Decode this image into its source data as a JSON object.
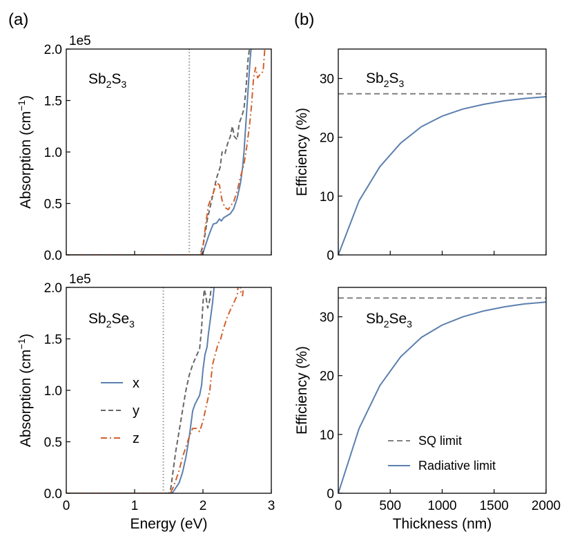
{
  "panel_labels": {
    "a": "(a)",
    "b": "(b)"
  },
  "chart_data": [
    {
      "id": "sb2s3_absorption",
      "type": "line",
      "panel": "(a)",
      "annotation": {
        "base1": "Sb",
        "sub1": "2",
        "base2": "S",
        "sub2": "3"
      },
      "xlabel": "",
      "ylabel": {
        "main": "Absorption (cm",
        "sup": "−1",
        "close": ")"
      },
      "xlim": [
        0,
        3
      ],
      "ylim": [
        0,
        2.0
      ],
      "xticks": [
        0,
        1,
        2,
        3
      ],
      "xticklabels": [],
      "yticks": [
        0,
        0.5,
        1.0,
        1.5,
        2.0
      ],
      "yticklabels": [
        "0.0",
        "0.5",
        "1.0",
        "1.5",
        "2.0"
      ],
      "offset_text": "1e5",
      "vline": 1.8,
      "series": [
        {
          "name": "x",
          "color": "#5b7fae",
          "dash": "",
          "points": [
            [
              0,
              0
            ],
            [
              1.98,
              0
            ],
            [
              2.0,
              0.02
            ],
            [
              2.04,
              0.1
            ],
            [
              2.08,
              0.18
            ],
            [
              2.12,
              0.25
            ],
            [
              2.15,
              0.3
            ],
            [
              2.2,
              0.31
            ],
            [
              2.24,
              0.35
            ],
            [
              2.27,
              0.33
            ],
            [
              2.3,
              0.36
            ],
            [
              2.35,
              0.38
            ],
            [
              2.4,
              0.4
            ],
            [
              2.45,
              0.45
            ],
            [
              2.5,
              0.55
            ],
            [
              2.55,
              0.7
            ],
            [
              2.58,
              0.85
            ],
            [
              2.6,
              1.0
            ],
            [
              2.63,
              1.3
            ],
            [
              2.66,
              1.6
            ],
            [
              2.69,
              1.9
            ],
            [
              2.71,
              2.05
            ]
          ]
        },
        {
          "name": "y",
          "color": "#656565",
          "dash": "7,4",
          "points": [
            [
              0,
              0
            ],
            [
              1.96,
              0
            ],
            [
              1.98,
              0.05
            ],
            [
              2.01,
              0.12
            ],
            [
              2.04,
              0.24
            ],
            [
              2.06,
              0.33
            ],
            [
              2.1,
              0.45
            ],
            [
              2.15,
              0.6
            ],
            [
              2.2,
              0.75
            ],
            [
              2.25,
              0.85
            ],
            [
              2.28,
              1.0
            ],
            [
              2.32,
              0.98
            ],
            [
              2.36,
              1.08
            ],
            [
              2.4,
              1.15
            ],
            [
              2.43,
              1.25
            ],
            [
              2.46,
              1.15
            ],
            [
              2.5,
              1.12
            ],
            [
              2.53,
              1.28
            ],
            [
              2.57,
              1.35
            ],
            [
              2.6,
              1.42
            ],
            [
              2.63,
              1.62
            ],
            [
              2.66,
              1.9
            ],
            [
              2.69,
              2.05
            ]
          ]
        },
        {
          "name": "z",
          "color": "#d2602b",
          "dash": "9,4,2,4",
          "points": [
            [
              0,
              0
            ],
            [
              1.97,
              0
            ],
            [
              2.0,
              0.08
            ],
            [
              2.04,
              0.3
            ],
            [
              2.08,
              0.48
            ],
            [
              2.12,
              0.55
            ],
            [
              2.15,
              0.6
            ],
            [
              2.2,
              0.7
            ],
            [
              2.24,
              0.68
            ],
            [
              2.28,
              0.53
            ],
            [
              2.32,
              0.46
            ],
            [
              2.37,
              0.44
            ],
            [
              2.41,
              0.48
            ],
            [
              2.45,
              0.52
            ],
            [
              2.5,
              0.62
            ],
            [
              2.55,
              0.76
            ],
            [
              2.6,
              0.88
            ],
            [
              2.64,
              1.05
            ],
            [
              2.68,
              1.25
            ],
            [
              2.71,
              1.45
            ],
            [
              2.74,
              1.72
            ],
            [
              2.77,
              1.82
            ],
            [
              2.8,
              1.72
            ],
            [
              2.84,
              1.76
            ],
            [
              2.88,
              1.78
            ],
            [
              2.91,
              2.05
            ]
          ]
        }
      ]
    },
    {
      "id": "sb2se3_absorption",
      "type": "line",
      "panel": "",
      "annotation": {
        "base1": "Sb",
        "sub1": "2",
        "base2": "Se",
        "sub2": "3"
      },
      "xlabel": "Energy (eV)",
      "ylabel": {
        "main": "Absorption (cm",
        "sup": "−1",
        "close": ")"
      },
      "xlim": [
        0,
        3
      ],
      "ylim": [
        0,
        2.0
      ],
      "xticks": [
        0,
        1,
        2,
        3
      ],
      "xticklabels": [
        "0",
        "1",
        "2",
        "3"
      ],
      "yticks": [
        0,
        0.5,
        1.0,
        1.5,
        2.0
      ],
      "yticklabels": [
        "0.0",
        "0.5",
        "1.0",
        "1.5",
        "2.0"
      ],
      "offset_text": "1e5",
      "vline": 1.42,
      "legend": {
        "position": "center-left",
        "entries": [
          "x",
          "y",
          "z"
        ]
      },
      "series": [
        {
          "name": "x",
          "color": "#5b7fae",
          "dash": "",
          "points": [
            [
              0,
              0
            ],
            [
              1.52,
              0
            ],
            [
              1.56,
              0.01
            ],
            [
              1.6,
              0.05
            ],
            [
              1.65,
              0.1
            ],
            [
              1.7,
              0.2
            ],
            [
              1.75,
              0.35
            ],
            [
              1.8,
              0.55
            ],
            [
              1.85,
              0.8
            ],
            [
              1.88,
              0.86
            ],
            [
              1.91,
              0.9
            ],
            [
              1.95,
              0.95
            ],
            [
              1.98,
              1.05
            ],
            [
              2.0,
              1.2
            ],
            [
              2.03,
              1.35
            ],
            [
              2.06,
              1.42
            ],
            [
              2.08,
              1.55
            ],
            [
              2.11,
              1.7
            ],
            [
              2.14,
              1.85
            ],
            [
              2.17,
              2.05
            ]
          ]
        },
        {
          "name": "y",
          "color": "#656565",
          "dash": "7,4",
          "points": [
            [
              0,
              0
            ],
            [
              1.5,
              0
            ],
            [
              1.53,
              0.05
            ],
            [
              1.56,
              0.2
            ],
            [
              1.6,
              0.4
            ],
            [
              1.65,
              0.6
            ],
            [
              1.7,
              0.8
            ],
            [
              1.75,
              1.0
            ],
            [
              1.8,
              1.15
            ],
            [
              1.85,
              1.25
            ],
            [
              1.9,
              1.33
            ],
            [
              1.95,
              1.4
            ],
            [
              1.98,
              1.6
            ],
            [
              2.0,
              1.85
            ],
            [
              2.02,
              1.98
            ],
            [
              2.04,
              1.92
            ],
            [
              2.07,
              1.8
            ],
            [
              2.1,
              1.88
            ],
            [
              2.13,
              2.05
            ]
          ]
        },
        {
          "name": "z",
          "color": "#d2602b",
          "dash": "9,4,2,4",
          "points": [
            [
              0,
              0
            ],
            [
              1.52,
              0
            ],
            [
              1.56,
              0.05
            ],
            [
              1.6,
              0.12
            ],
            [
              1.65,
              0.22
            ],
            [
              1.7,
              0.35
            ],
            [
              1.75,
              0.45
            ],
            [
              1.8,
              0.55
            ],
            [
              1.85,
              0.63
            ],
            [
              1.9,
              0.63
            ],
            [
              1.95,
              0.6
            ],
            [
              2.0,
              0.7
            ],
            [
              2.05,
              0.85
            ],
            [
              2.1,
              1.0
            ],
            [
              2.14,
              1.25
            ],
            [
              2.18,
              1.35
            ],
            [
              2.22,
              1.45
            ],
            [
              2.26,
              1.5
            ],
            [
              2.3,
              1.6
            ],
            [
              2.35,
              1.7
            ],
            [
              2.4,
              1.78
            ],
            [
              2.45,
              1.85
            ],
            [
              2.5,
              1.92
            ],
            [
              2.52,
              2.05
            ]
          ]
        },
        {
          "name": "z_tail",
          "color": "#d2602b",
          "dash": "9,4,2,4",
          "points": [
            [
              2.54,
              2.05
            ],
            [
              2.56,
              1.93
            ],
            [
              2.58,
              1.92
            ],
            [
              2.6,
              2.05
            ]
          ]
        }
      ]
    },
    {
      "id": "sb2s3_efficiency",
      "type": "line",
      "panel": "(b)",
      "annotation": {
        "base1": "Sb",
        "sub1": "2",
        "base2": "S",
        "sub2": "3"
      },
      "xlabel": "",
      "ylabel": {
        "main": "Efficiency (%)",
        "sup": "",
        "close": ""
      },
      "xlim": [
        0,
        2000
      ],
      "ylim": [
        0,
        35
      ],
      "xticks": [
        0,
        500,
        1000,
        1500,
        2000
      ],
      "xticklabels": [],
      "yticks": [
        0,
        10,
        20,
        30
      ],
      "yticklabels": [
        "0",
        "10",
        "20",
        "30"
      ],
      "offset_text": "",
      "hline": {
        "name": "SQ limit",
        "y": 27.4,
        "color": "#808080",
        "dash": "8,5"
      },
      "series": [
        {
          "name": "Radiative limit",
          "color": "#5b7fae",
          "dash": "",
          "x": [
            0,
            200,
            400,
            600,
            800,
            1000,
            1200,
            1400,
            1600,
            1800,
            2000
          ],
          "y": [
            0,
            9.2,
            15.0,
            19.0,
            21.8,
            23.6,
            24.8,
            25.6,
            26.2,
            26.6,
            26.9
          ]
        }
      ]
    },
    {
      "id": "sb2se3_efficiency",
      "type": "line",
      "panel": "",
      "annotation": {
        "base1": "Sb",
        "sub1": "2",
        "base2": "Se",
        "sub2": "3"
      },
      "xlabel": "Thickness (nm)",
      "ylabel": {
        "main": "Efficiency (%)",
        "sup": "",
        "close": ""
      },
      "xlim": [
        0,
        2000
      ],
      "ylim": [
        0,
        35
      ],
      "xticks": [
        0,
        500,
        1000,
        1500,
        2000
      ],
      "xticklabels": [
        "0",
        "500",
        "1000",
        "1500",
        "2000"
      ],
      "yticks": [
        0,
        10,
        20,
        30
      ],
      "yticklabels": [
        "0",
        "10",
        "20",
        "30"
      ],
      "offset_text": "",
      "hline": {
        "name": "SQ limit",
        "y": 33.2,
        "color": "#808080",
        "dash": "8,5"
      },
      "legend": {
        "position": "lower-right",
        "entries": [
          "SQ limit",
          "Radiative limit"
        ]
      },
      "series": [
        {
          "name": "Radiative limit",
          "color": "#5b7fae",
          "dash": "",
          "x": [
            0,
            200,
            400,
            600,
            800,
            1000,
            1200,
            1400,
            1600,
            1800,
            2000
          ],
          "y": [
            0,
            11.0,
            18.3,
            23.2,
            26.5,
            28.6,
            30.0,
            31.0,
            31.7,
            32.2,
            32.5
          ]
        }
      ]
    }
  ]
}
